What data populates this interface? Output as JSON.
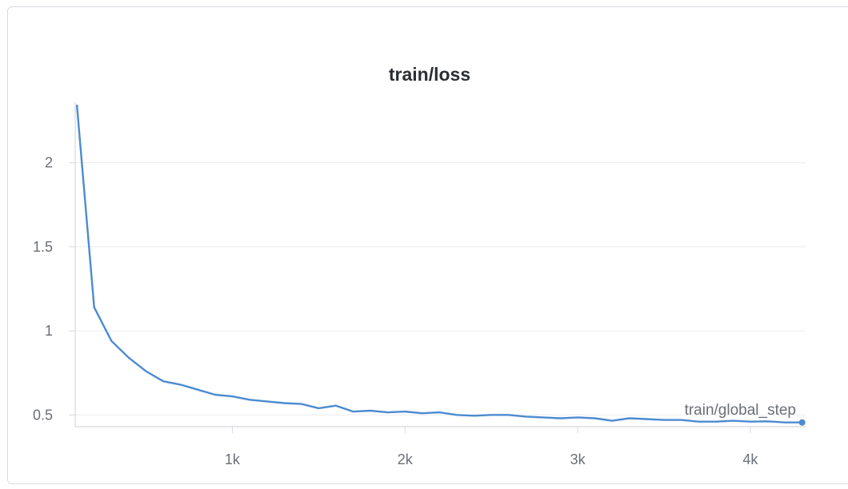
{
  "chart_data": {
    "type": "line",
    "title": "train/loss",
    "xlabel": "train/global_step",
    "ylabel": "",
    "xlim": [
      90,
      4320
    ],
    "ylim": [
      0.43,
      2.35
    ],
    "x_ticks": [
      {
        "value": 1000,
        "label": "1k"
      },
      {
        "value": 2000,
        "label": "2k"
      },
      {
        "value": 3000,
        "label": "3k"
      },
      {
        "value": 4000,
        "label": "4k"
      }
    ],
    "y_ticks": [
      {
        "value": 0.5,
        "label": "0.5"
      },
      {
        "value": 1,
        "label": "1"
      },
      {
        "value": 1.5,
        "label": "1.5"
      },
      {
        "value": 2,
        "label": "2"
      }
    ],
    "grid": true,
    "line_color": "#4c8bd0",
    "series": [
      {
        "x": [
          100,
          200,
          300,
          400,
          500,
          600,
          700,
          800,
          900,
          1000,
          1100,
          1200,
          1300,
          1400,
          1500,
          1600,
          1700,
          1800,
          1900,
          2000,
          2100,
          2200,
          2300,
          2400,
          2500,
          2600,
          2700,
          2800,
          2900,
          3000,
          3100,
          3200,
          3300,
          3400,
          3500,
          3600,
          3700,
          3800,
          3900,
          4000,
          4100,
          4200,
          4300
        ],
        "y": [
          2.34,
          1.14,
          0.94,
          0.84,
          0.76,
          0.7,
          0.68,
          0.65,
          0.62,
          0.61,
          0.59,
          0.58,
          0.57,
          0.565,
          0.54,
          0.555,
          0.52,
          0.525,
          0.515,
          0.52,
          0.51,
          0.515,
          0.5,
          0.495,
          0.5,
          0.5,
          0.49,
          0.485,
          0.48,
          0.485,
          0.48,
          0.465,
          0.48,
          0.475,
          0.47,
          0.47,
          0.46,
          0.46,
          0.465,
          0.46,
          0.462,
          0.455,
          0.455
        ]
      }
    ]
  }
}
